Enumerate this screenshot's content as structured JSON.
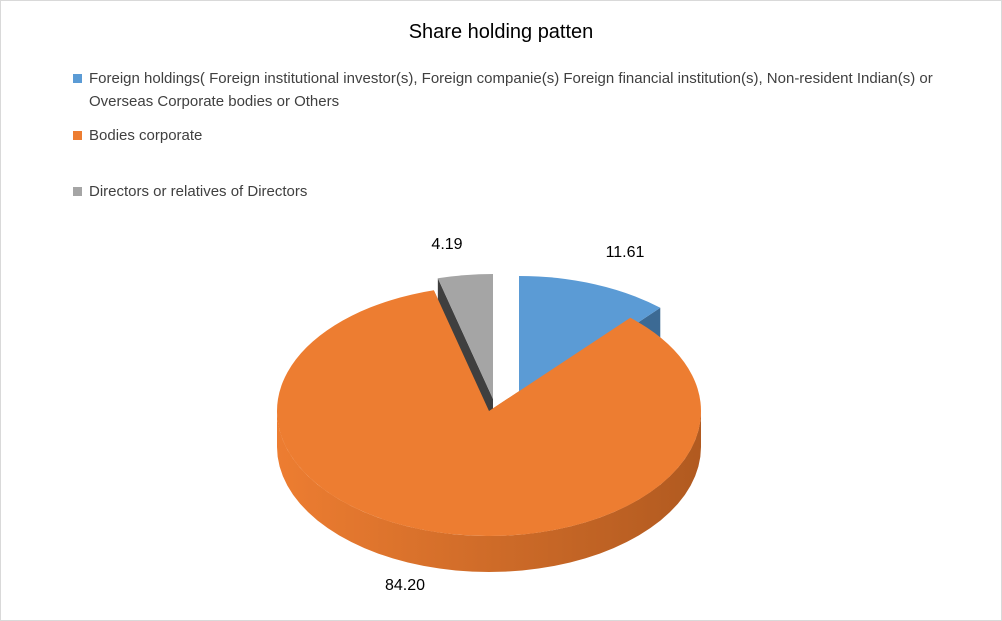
{
  "chart_data": {
    "type": "pie",
    "style": "3d-exploded",
    "title": "Share holding patten",
    "legend_position": "top-left",
    "slices": [
      {
        "name": "Foreign holdings( Foreign institutional investor(s), Foreign companie(s) Foreign financial institution(s), Non-resident Indian(s) or Overseas Corporate bodies or Others",
        "value": 11.61,
        "label": "11.61",
        "color": "#5b9bd5",
        "side_color": "#3c6a94"
      },
      {
        "name": "Bodies corporate",
        "value": 84.2,
        "label": "84.20",
        "color": "#ed7d31",
        "side_color": "#b15a20"
      },
      {
        "name": "Directors or relatives of Directors",
        "value": 4.19,
        "label": "4.19",
        "color": "#a5a5a5",
        "side_color": "#3f3f3f"
      }
    ]
  }
}
